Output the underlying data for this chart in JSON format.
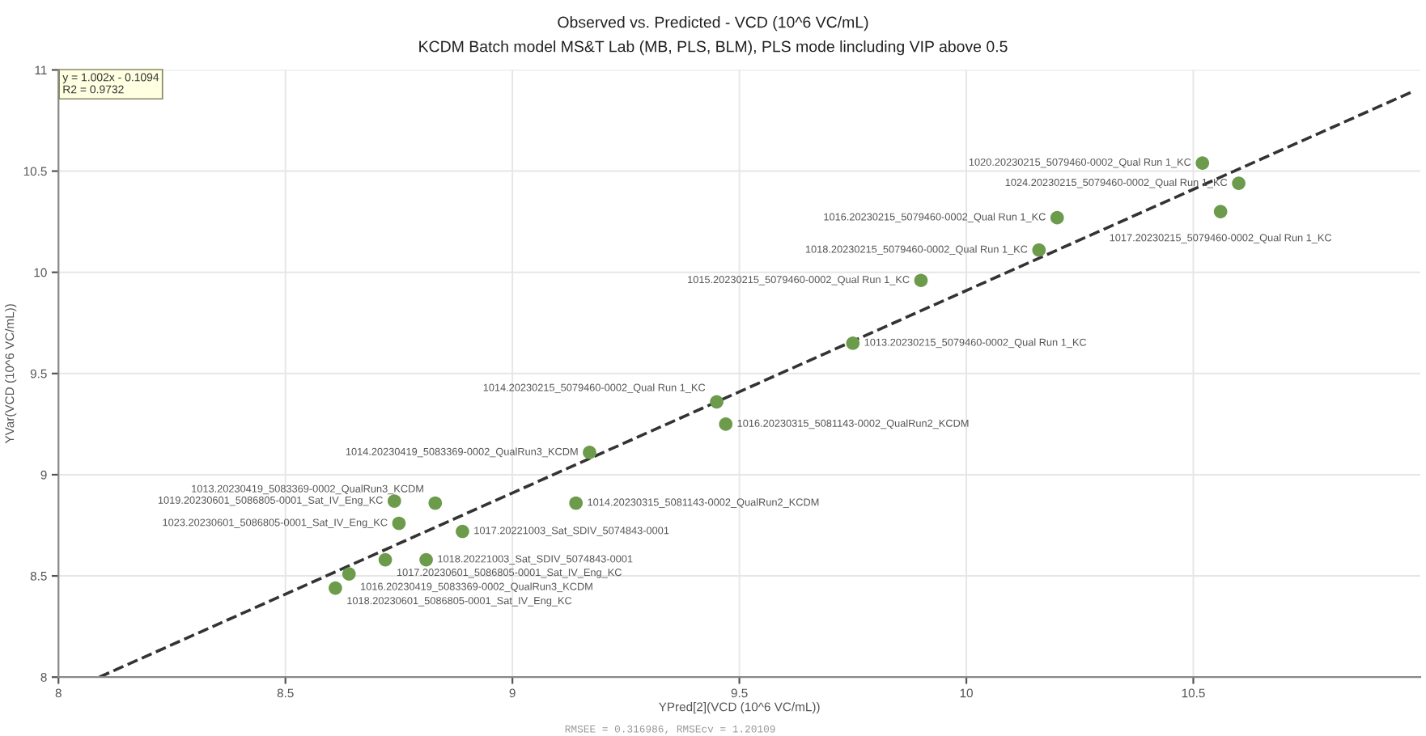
{
  "chart_data": {
    "type": "scatter",
    "title": "Observed vs. Predicted - VCD (10^6 VC/mL)",
    "subtitle": "KCDM Batch model MS&T Lab (MB, PLS, BLM), PLS mode lincluding VIP above 0.5",
    "xlabel": "YPred[2](VCD (10^6 VC/mL))",
    "ylabel": "YVar(VCD (10^6 VC/mL))",
    "xlim": [
      8,
      11
    ],
    "ylim": [
      8,
      11
    ],
    "xticks": [
      8,
      8.5,
      9,
      9.5,
      10,
      10.5
    ],
    "yticks": [
      8,
      8.5,
      9,
      9.5,
      10,
      10.5,
      11
    ],
    "grid": true,
    "marker": "circle",
    "series": [
      {
        "color": "#6b9b4b",
        "x": [
          10.52,
          10.6,
          10.56,
          10.2,
          10.16,
          9.9,
          9.75,
          9.45,
          9.47,
          9.17,
          9.14,
          8.83,
          8.74,
          8.75,
          8.89,
          8.72,
          8.81,
          8.64,
          8.61
        ],
        "values": [
          10.54,
          10.44,
          10.3,
          10.27,
          10.11,
          9.96,
          9.65,
          9.36,
          9.25,
          9.11,
          8.86,
          8.86,
          8.87,
          8.76,
          8.72,
          8.58,
          8.58,
          8.51,
          8.44
        ]
      },
      {
        "type": "line",
        "color": "#333333",
        "line_style": "dashed",
        "marker": "none",
        "x": [
          8.09,
          10.98
        ],
        "values": [
          8.0,
          10.89
        ]
      }
    ],
    "annotations": [
      "y = 1.002x - 0.1094\nR2 = 0.9732",
      "RMSEE = 0.316986, RMSEcv = 1.20109",
      {
        "text": "1020.20230215_5079460-0002_Qual Run 1_KC",
        "x": 10.52,
        "y": 10.54
      },
      {
        "text": "1024.20230215_5079460-0002_Qual Run 1_KC",
        "x": 10.6,
        "y": 10.44
      },
      {
        "text": "1017.20230215_5079460-0002_Qual Run 1_KC",
        "x": 10.56,
        "y": 10.3
      },
      {
        "text": "1016.20230215_5079460-0002_Qual Run 1_KC",
        "x": 10.2,
        "y": 10.27
      },
      {
        "text": "1018.20230215_5079460-0002_Qual Run 1_KC",
        "x": 10.16,
        "y": 10.11
      },
      {
        "text": "1015.20230215_5079460-0002_Qual Run 1_KC",
        "x": 9.9,
        "y": 9.96
      },
      {
        "text": "1013.20230215_5079460-0002_Qual Run 1_KC",
        "x": 9.75,
        "y": 9.65
      },
      {
        "text": "1014.20230215_5079460-0002_Qual Run 1_KC",
        "x": 9.45,
        "y": 9.36
      },
      {
        "text": "1016.20230315_5081143-0002_QualRun2_KCDM",
        "x": 9.47,
        "y": 9.25
      },
      {
        "text": "1014.20230419_5083369-0002_QualRun3_KCDM",
        "x": 9.17,
        "y": 9.11
      },
      {
        "text": "1014.20230315_5081143-0002_QualRun2_KCDM",
        "x": 9.14,
        "y": 8.86
      },
      {
        "text": "1013.20230419_5083369-0002_QualRun3_KCDM",
        "x": 8.83,
        "y": 8.86
      },
      {
        "text": "1019.20230601_5086805-0001_Sat_IV_Eng_KC",
        "x": 8.74,
        "y": 8.87
      },
      {
        "text": "1023.20230601_5086805-0001_Sat_IV_Eng_KC",
        "x": 8.75,
        "y": 8.76
      },
      {
        "text": "1017.20221003_Sat_SDIV_5074843-0001",
        "x": 8.89,
        "y": 8.72
      },
      {
        "text": "1017.20230601_5086805-0001_Sat_IV_Eng_KC",
        "x": 8.72,
        "y": 8.58
      },
      {
        "text": "1018.20221003_Sat_SDIV_5074843-0001",
        "x": 8.81,
        "y": 8.58
      },
      {
        "text": "1016.20230419_5083369-0002_QualRun3_KCDM",
        "x": 8.64,
        "y": 8.51
      },
      {
        "text": "1018.20230601_5086805-0001_Sat_IV_Eng_KC",
        "x": 8.61,
        "y": 8.44
      }
    ]
  }
}
